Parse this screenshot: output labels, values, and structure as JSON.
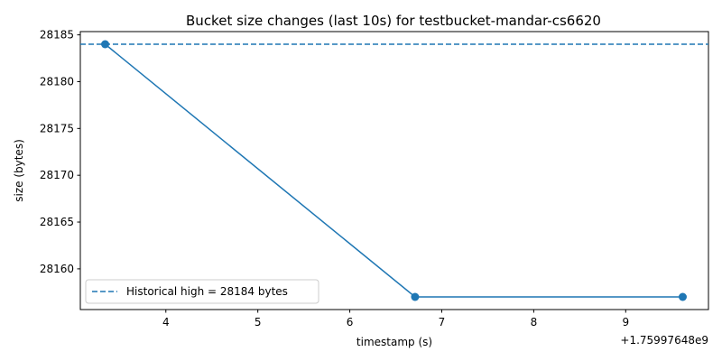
{
  "chart_data": {
    "type": "line",
    "title": "Bucket size changes (last 10s) for testbucket-mandar-cs6620",
    "xlabel": "timestamp (s)",
    "ylabel": "size (bytes)",
    "x_offset_label": "+1.75997648e9",
    "xlim": [
      3.07,
      9.9
    ],
    "ylim": [
      28155.65,
      28185.35
    ],
    "x_ticks": [
      4,
      5,
      6,
      7,
      8,
      9
    ],
    "y_ticks": [
      28160,
      28165,
      28170,
      28175,
      28180,
      28185
    ],
    "grid": false,
    "series": [
      {
        "x": [
          3.34,
          6.71,
          9.62
        ],
        "values": [
          28184,
          28157,
          28157
        ],
        "color": "#1f77b4",
        "marker": "circle"
      }
    ],
    "reference_line": {
      "value": 28184,
      "style": "dashed",
      "color": "#1f77b4",
      "label": "Historical high = 28184 bytes"
    },
    "legend_position": "lower-left"
  }
}
